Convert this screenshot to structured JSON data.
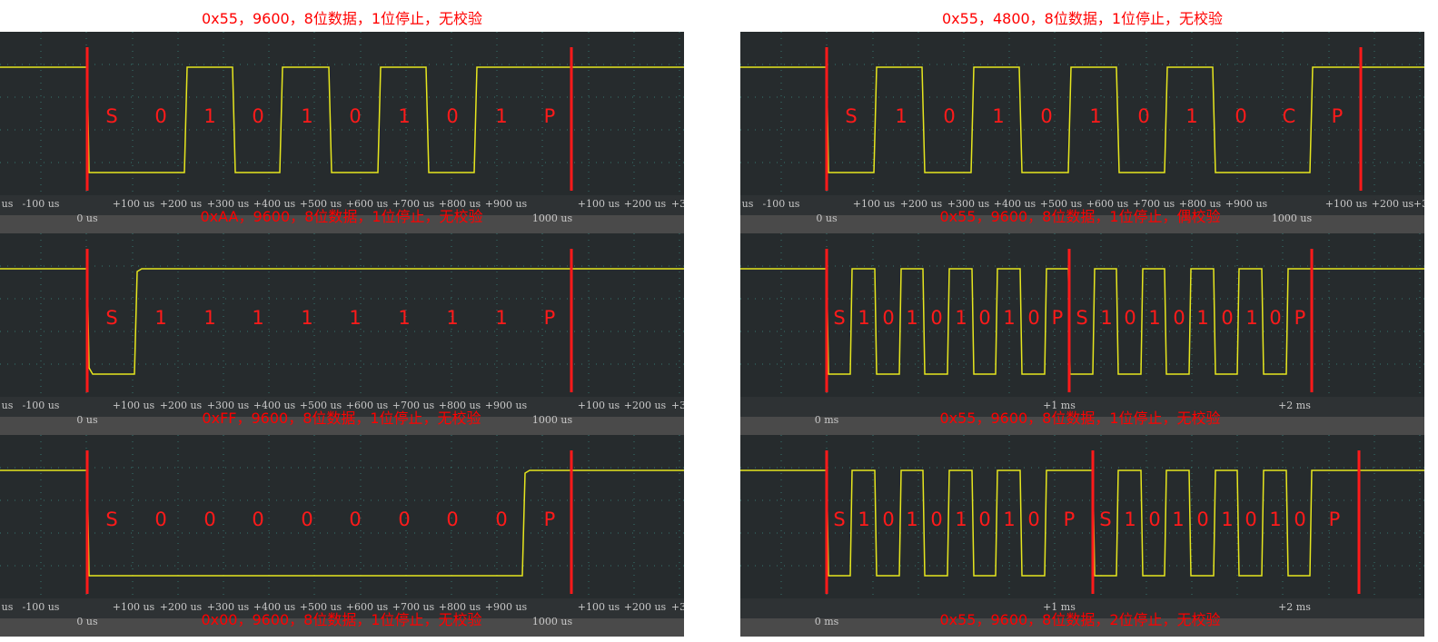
{
  "columns": [
    {
      "title": "0x55，9600，8位数据，1位停止，无校验"
    },
    {
      "title": "0x55，4800，8位数据，1位停止，无校验"
    }
  ],
  "panels": [
    {
      "bits": [
        "S",
        "0",
        "1",
        "0",
        "1",
        "0",
        "1",
        "0",
        "1",
        "P"
      ],
      "ticks": [
        "us",
        "-100 us",
        "+100 us",
        "+200 us",
        "+300 us",
        "+400 us",
        "+500 us",
        "+600 us",
        "+700 us",
        "+800 us",
        "+900 us",
        "+100 us",
        "+200 us",
        "+3"
      ],
      "zero_label": "0 us",
      "mid_label": "1000 us",
      "caption": "0xAA，9600，8位数据，1位停止，无校验"
    },
    {
      "bits": [
        "S",
        "1",
        "0",
        "1",
        "0",
        "1",
        "0",
        "1",
        "0",
        "C",
        "P"
      ],
      "ticks": [
        "us",
        "-100 us",
        "+100 us",
        "+200 us",
        "+300 us",
        "+400 us",
        "+500 us",
        "+600 us",
        "+700 us",
        "+800 us",
        "+900 us",
        "+100 us",
        "+200 us",
        "+3"
      ],
      "zero_label": "0 us",
      "mid_label": "1000 us",
      "caption": "0x55，9600，8位数据，1位停止，偶校验"
    },
    {
      "bits": [
        "S",
        "1",
        "1",
        "1",
        "1",
        "1",
        "1",
        "1",
        "1",
        "P"
      ],
      "ticks": [
        "us",
        "-100 us",
        "+100 us",
        "+200 us",
        "+300 us",
        "+400 us",
        "+500 us",
        "+600 us",
        "+700 us",
        "+800 us",
        "+900 us",
        "+100 us",
        "+200 us",
        "+3"
      ],
      "zero_label": "0 us",
      "mid_label": "1000 us",
      "caption": "0xFF，9600，8位数据，1位停止，无校验"
    },
    {
      "bits": [
        "S",
        "1",
        "0",
        "1",
        "0",
        "1",
        "0",
        "1",
        "0",
        "P",
        "S",
        "1",
        "0",
        "1",
        "0",
        "1",
        "0",
        "1",
        "0",
        "P"
      ],
      "ticks": [
        "+1 ms",
        "+2 ms"
      ],
      "zero_label": "0 ms",
      "mid_label": "",
      "caption": "0x55，9600，8位数据，1位停止，无校验"
    },
    {
      "bits": [
        "S",
        "0",
        "0",
        "0",
        "0",
        "0",
        "0",
        "0",
        "0",
        "P"
      ],
      "ticks": [
        "us",
        "-100 us",
        "+100 us",
        "+200 us",
        "+300 us",
        "+400 us",
        "+500 us",
        "+600 us",
        "+700 us",
        "+800 us",
        "+900 us",
        "+100 us",
        "+200 us",
        "+3"
      ],
      "zero_label": "0 us",
      "mid_label": "1000 us",
      "caption": "0x00，9600，8位数据，1位停止，无校验"
    },
    {
      "bits": [
        "S",
        "1",
        "0",
        "1",
        "0",
        "1",
        "0",
        "1",
        "0",
        "P",
        "S",
        "1",
        "0",
        "1",
        "0",
        "1",
        "0",
        "1",
        "0",
        "P"
      ],
      "ticks": [
        "+1 ms",
        "+2 ms"
      ],
      "zero_label": "0 ms",
      "mid_label": "",
      "caption": "0x55，9600，8位数据，2位停止，无校验"
    }
  ],
  "colors": {
    "screen": "#262b2d",
    "axis_bar": "#4a4a4a",
    "trace": "#e6e61e",
    "marker": "#ff1a1a",
    "grid": "#3fa89a"
  }
}
